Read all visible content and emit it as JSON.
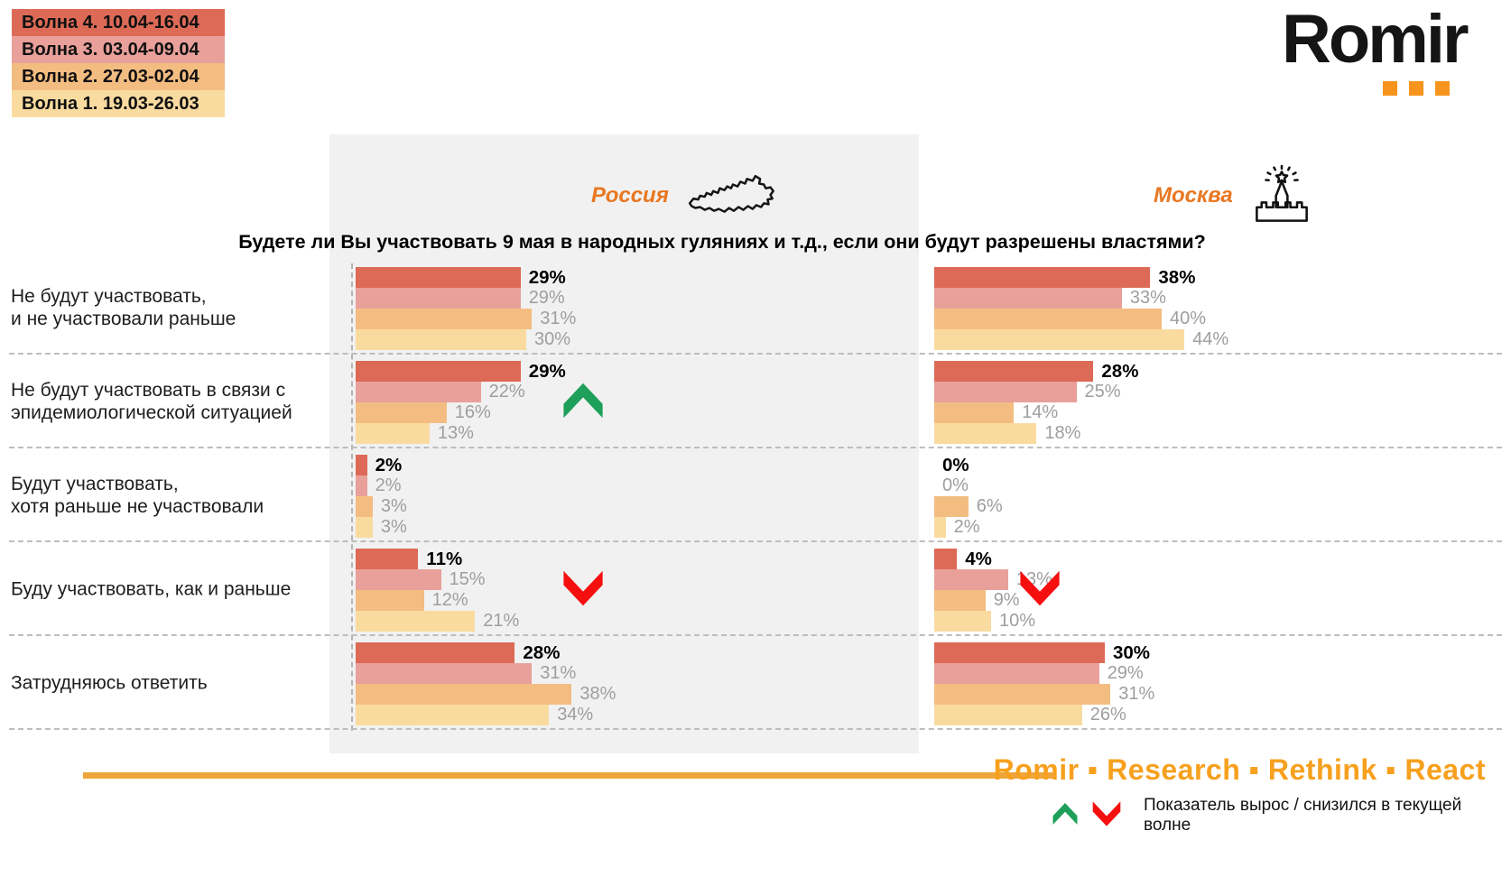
{
  "logo": {
    "text": "Romir",
    "dot_color": "#f7941d"
  },
  "waves_legend": {
    "items": [
      {
        "label": "Волна 4. 10.04-16.04",
        "color": "#dc6a57"
      },
      {
        "label": "Волна 3. 03.04-09.04",
        "color": "#e9a09a"
      },
      {
        "label": "Волна 2. 27.03-02.04",
        "color": "#f3bd82"
      },
      {
        "label": "Волна 1. 19.03-26.03",
        "color": "#f9dba0"
      }
    ]
  },
  "header": {
    "question": "Будете ли Вы участвовать 9 мая в народных гуляниях и т.д., если они будут разрешены властями?",
    "label_color": "#e87722",
    "columns": [
      {
        "label": "Россия",
        "icon": "russia-map-icon"
      },
      {
        "label": "Москва",
        "icon": "kremlin-icon"
      }
    ]
  },
  "chart_data": {
    "type": "bar",
    "orientation": "horizontal",
    "unit": "%",
    "x_max": 50,
    "waves": [
      "Волна 4. 10.04-16.04",
      "Волна 3. 03.04-09.04",
      "Волна 2. 27.03-02.04",
      "Волна 1. 19.03-26.03"
    ],
    "wave_colors": [
      "#dc6a57",
      "#e9a09a",
      "#f3bd82",
      "#f9dba0"
    ],
    "categories": [
      "Не будут участвовать,\nи не участвовали раньше",
      "Не будут участвовать в связи с\nэпидемиологической ситуацией",
      "Будут участвовать,\nхотя раньше не участвовали",
      "Буду участвовать, как и раньше",
      "Затрудняюсь ответить"
    ],
    "series": [
      {
        "name": "Россия",
        "values": [
          [
            29,
            29,
            31,
            30
          ],
          [
            29,
            22,
            16,
            13
          ],
          [
            2,
            2,
            3,
            3
          ],
          [
            11,
            15,
            12,
            21
          ],
          [
            28,
            31,
            38,
            34
          ]
        ]
      },
      {
        "name": "Москва",
        "values": [
          [
            38,
            33,
            40,
            44
          ],
          [
            28,
            25,
            14,
            18
          ],
          [
            0,
            0,
            6,
            2
          ],
          [
            4,
            13,
            9,
            10
          ],
          [
            30,
            29,
            31,
            26
          ]
        ]
      }
    ],
    "trend_arrows": [
      {
        "column": "Россия",
        "category_index": 1,
        "direction": "up"
      },
      {
        "column": "Россия",
        "category_index": 3,
        "direction": "down"
      },
      {
        "column": "Москва",
        "category_index": 3,
        "direction": "down"
      }
    ]
  },
  "footer": {
    "brand": "Romir ▪ Research ▪ Rethink ▪ React",
    "brand_color": "#f7a01e",
    "line_color": "#eea53b",
    "arrows_note": "Показатель вырос / снизился в текущей волне",
    "up_color": "#1fa05a",
    "down_color": "#f50f0f"
  }
}
